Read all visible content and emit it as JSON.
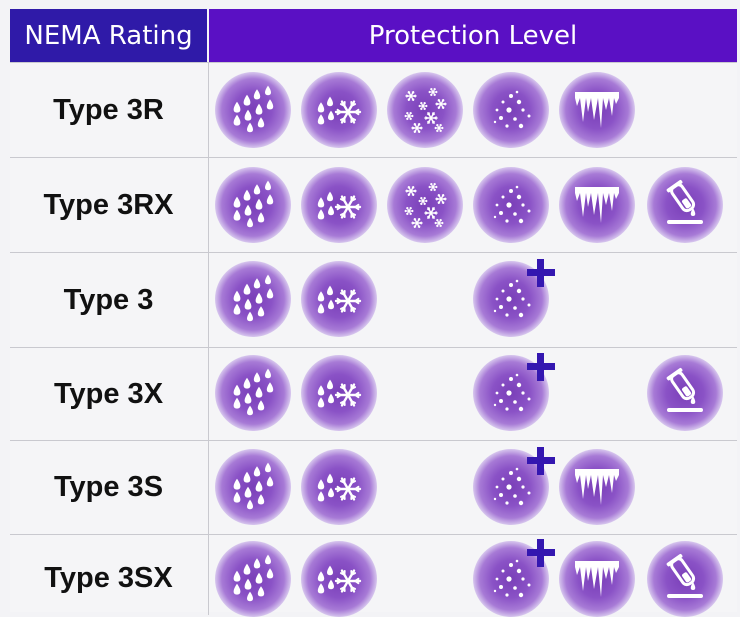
{
  "header": {
    "rating": "NEMA Rating",
    "protection": "Protection Level"
  },
  "colors": {
    "header_left": "#2f1aa8",
    "header_right": "#5a10c4",
    "icon": "#7a3fb8",
    "plus": "#3417b0"
  },
  "rows": [
    {
      "label": "Type 3R",
      "icons": [
        "rain-icon",
        "sleet-icon",
        "snow-icon",
        "dust-icon",
        "ice-icon"
      ]
    },
    {
      "label": "Type 3RX",
      "icons": [
        "rain-icon",
        "sleet-icon",
        "snow-icon",
        "dust-icon",
        "ice-icon",
        "corrosion-icon"
      ]
    },
    {
      "label": "Type 3",
      "icons": [
        "rain-icon",
        "sleet-icon",
        "dust-plus-icon"
      ]
    },
    {
      "label": "Type 3X",
      "icons": [
        "rain-icon",
        "sleet-icon",
        "dust-plus-icon",
        "corrosion-icon"
      ]
    },
    {
      "label": "Type 3S",
      "icons": [
        "rain-icon",
        "sleet-icon",
        "dust-plus-icon",
        "ice-icon"
      ]
    },
    {
      "label": "Type 3SX",
      "icons": [
        "rain-icon",
        "sleet-icon",
        "dust-plus-icon",
        "ice-icon",
        "corrosion-icon"
      ]
    }
  ]
}
